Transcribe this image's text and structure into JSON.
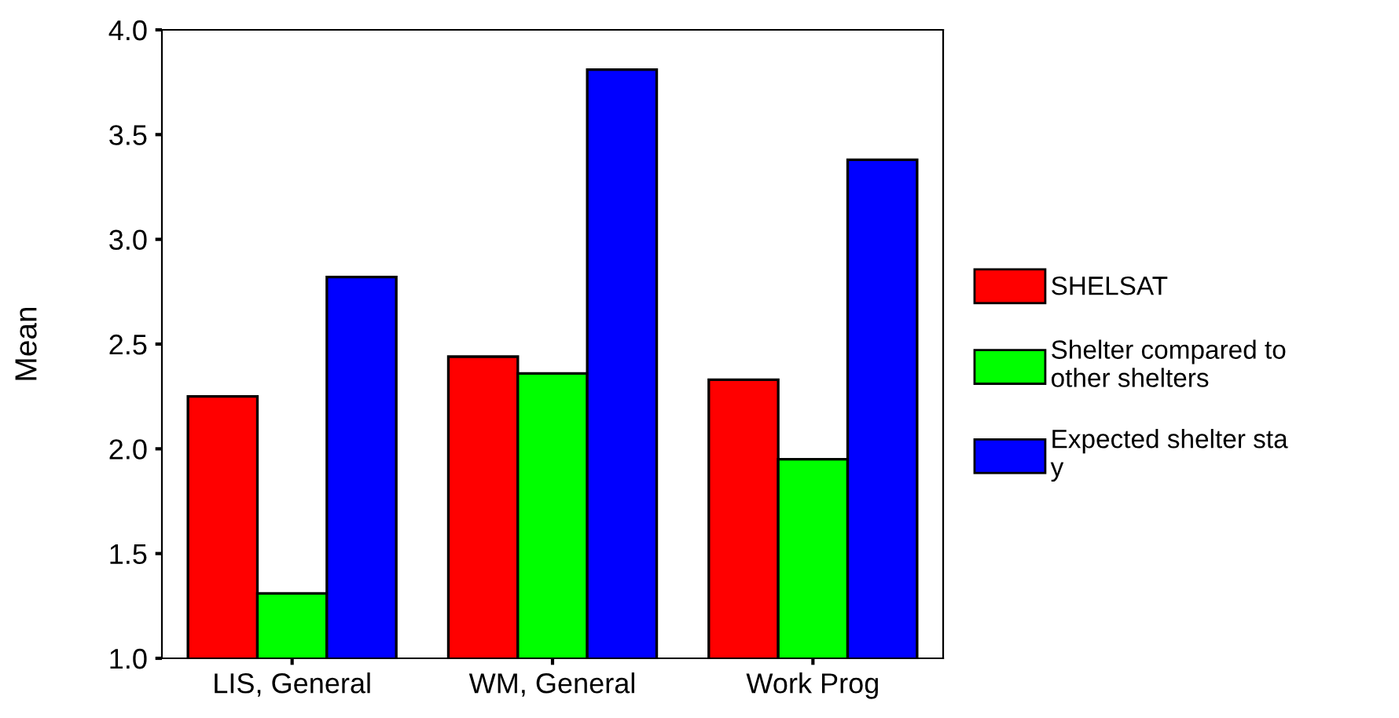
{
  "chart_data": {
    "type": "bar",
    "ylabel": "Mean",
    "categories": [
      "LIS, General",
      "WM, General",
      "Work Prog"
    ],
    "series": [
      {
        "name": "SHELSAT",
        "color": "#ff0000",
        "values": [
          2.25,
          2.44,
          2.33
        ]
      },
      {
        "name": "Shelter compared to\nother shelters",
        "color": "#00ff00",
        "values": [
          1.31,
          2.36,
          1.95
        ]
      },
      {
        "name": "Expected shelter sta\ny",
        "color": "#0000ff",
        "values": [
          2.82,
          3.81,
          3.38
        ]
      }
    ],
    "ylim": [
      1.0,
      4.0
    ],
    "yticks": [
      {
        "value": 1.0,
        "label": "1.0"
      },
      {
        "value": 1.5,
        "label": "1.5"
      },
      {
        "value": 2.0,
        "label": "2.0"
      },
      {
        "value": 2.5,
        "label": "2.5"
      },
      {
        "value": 3.0,
        "label": "3.0"
      },
      {
        "value": 3.5,
        "label": "3.5"
      },
      {
        "value": 4.0,
        "label": "4.0"
      }
    ],
    "grid": false,
    "legend": "right"
  }
}
